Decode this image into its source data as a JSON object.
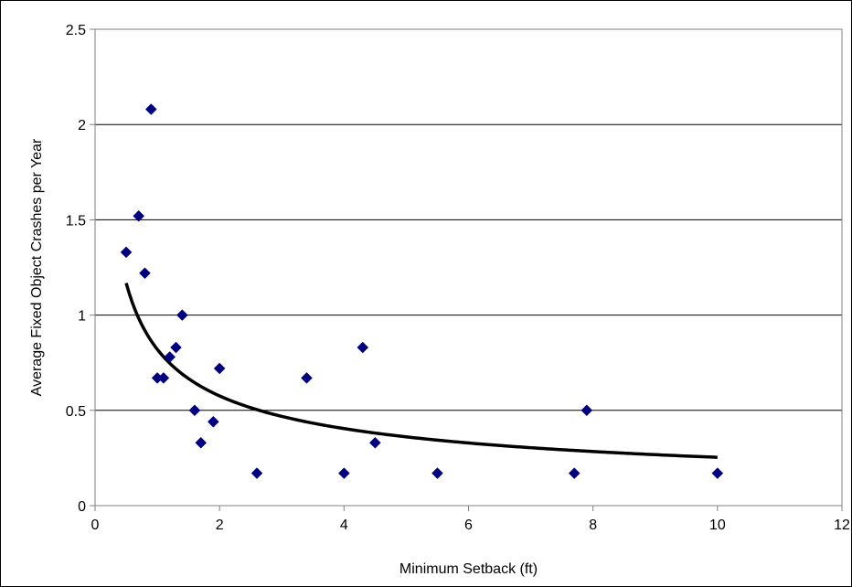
{
  "chart_data": {
    "type": "scatter",
    "title": "",
    "xlabel": "Minimum Setback (ft)",
    "ylabel": "Average Fixed Object Crashes per Year",
    "xlim": [
      0,
      12
    ],
    "ylim": [
      0,
      2.5
    ],
    "x_ticks": [
      0,
      2,
      4,
      6,
      8,
      10,
      12
    ],
    "y_ticks": [
      0,
      0.5,
      1,
      1.5,
      2,
      2.5
    ],
    "x_tick_labels": [
      "0",
      "2",
      "4",
      "6",
      "8",
      "10",
      "12"
    ],
    "y_tick_labels": [
      "0",
      "0.5",
      "1",
      "1.5",
      "2",
      "2.5"
    ],
    "grid": {
      "horizontal": true,
      "vertical": false
    },
    "legend": "none",
    "series": [
      {
        "marker": "diamond",
        "color": "#000080",
        "points": [
          {
            "x": 0.5,
            "y": 1.33
          },
          {
            "x": 0.7,
            "y": 1.52
          },
          {
            "x": 0.8,
            "y": 1.22
          },
          {
            "x": 0.9,
            "y": 2.08
          },
          {
            "x": 1.0,
            "y": 0.67
          },
          {
            "x": 1.1,
            "y": 0.67
          },
          {
            "x": 1.2,
            "y": 0.78
          },
          {
            "x": 1.3,
            "y": 0.83
          },
          {
            "x": 1.4,
            "y": 1.0
          },
          {
            "x": 1.6,
            "y": 0.5
          },
          {
            "x": 1.7,
            "y": 0.33
          },
          {
            "x": 1.9,
            "y": 0.44
          },
          {
            "x": 2.0,
            "y": 0.72
          },
          {
            "x": 2.6,
            "y": 0.17
          },
          {
            "x": 3.4,
            "y": 0.67
          },
          {
            "x": 4.0,
            "y": 0.17
          },
          {
            "x": 4.3,
            "y": 0.83
          },
          {
            "x": 4.5,
            "y": 0.33
          },
          {
            "x": 5.5,
            "y": 0.17
          },
          {
            "x": 7.7,
            "y": 0.17
          },
          {
            "x": 7.9,
            "y": 0.5
          },
          {
            "x": 10.0,
            "y": 0.17
          }
        ]
      }
    ],
    "trendline": {
      "type": "power",
      "color": "#000000",
      "x_range": [
        0.5,
        10.0
      ],
      "coefficient": 0.82,
      "exponent": -0.51
    }
  }
}
